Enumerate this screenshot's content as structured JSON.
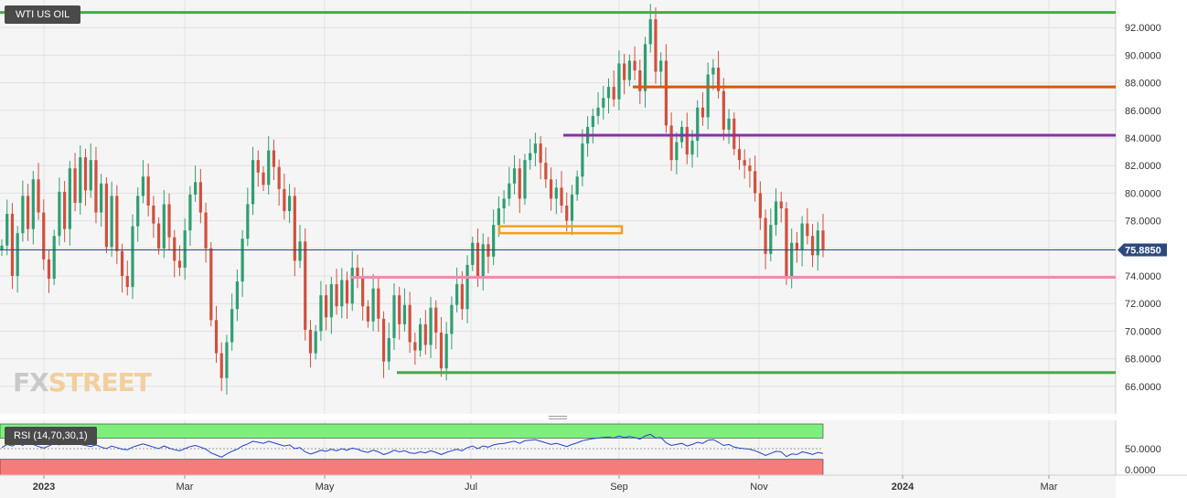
{
  "header": {
    "symbol": "WTI US OIL"
  },
  "logo": {
    "part1": "FX",
    "part2": "STREET"
  },
  "colors": {
    "up": "#2f9e72",
    "down": "#d0503e",
    "green_level": "#4aa84a",
    "orange_level": "#d4590a",
    "purple_level": "#8a2fa8",
    "pink_level": "#e98fb0",
    "zone": "#f2a020",
    "price_line": "#2b4a7a",
    "rsi_line": "#2440c8",
    "rsi_upper_band": "#7cf07c",
    "rsi_lower_band": "#f77b7b"
  },
  "chart_data": [
    {
      "type": "candlestick",
      "title": "WTI US OIL",
      "x_ticks": [
        "2023",
        "Mar",
        "May",
        "Jul",
        "Sep",
        "Nov",
        "2024",
        "Mar"
      ],
      "y_ticks": [
        "66.0000",
        "68.0000",
        "70.0000",
        "72.0000",
        "74.0000",
        "76.0000",
        "78.0000",
        "80.0000",
        "82.0000",
        "84.0000",
        "86.0000",
        "88.0000",
        "90.0000",
        "92.0000"
      ],
      "ylim": [
        64.0,
        94.0
      ],
      "last_price": "75.8850",
      "grid": true,
      "levels": [
        {
          "name": "resistance-top",
          "price": 93.1,
          "color": "green"
        },
        {
          "name": "resistance-88",
          "price": 87.7,
          "color": "orange"
        },
        {
          "name": "resistance-84",
          "price": 84.2,
          "color": "purple"
        },
        {
          "name": "support-74",
          "price": 73.9,
          "color": "pink"
        },
        {
          "name": "support-67",
          "price": 67.0,
          "color": "green"
        }
      ],
      "zone": {
        "low": 77.1,
        "high": 77.6
      },
      "series": [
        {
          "values": [
            76.2,
            78.5,
            74.0,
            77.1,
            79.8,
            77.4,
            81.0,
            78.6,
            75.2,
            73.8,
            76.9,
            80.1,
            77.4,
            81.8,
            79.3,
            82.6,
            80.2,
            82.4,
            78.6,
            80.7,
            76.1,
            79.8,
            75.8,
            74.0,
            73.2,
            77.6,
            79.8,
            81.2,
            79.1,
            77.8,
            76.0,
            79.2,
            76.8,
            75.1,
            74.6,
            77.3,
            79.9,
            80.8,
            78.6,
            76.0,
            70.8,
            68.4,
            66.6,
            69.2,
            71.6,
            73.6,
            76.7,
            79.2,
            82.4,
            81.5,
            80.6,
            83.1,
            81.9,
            80.3,
            78.7,
            79.8,
            75.1,
            76.5,
            70.1,
            68.4,
            70.0,
            72.6,
            71.0,
            73.4,
            71.8,
            73.7,
            72.0,
            74.6,
            73.9,
            71.8,
            70.7,
            73.1,
            70.9,
            67.8,
            69.5,
            72.6,
            70.5,
            71.9,
            69.2,
            68.6,
            70.5,
            69.0,
            71.7,
            69.9,
            67.3,
            69.8,
            71.9,
            73.4,
            71.6,
            74.8,
            76.4,
            73.9,
            76.3,
            75.4,
            77.7,
            78.9,
            79.6,
            80.7,
            81.8,
            79.6,
            82.4,
            82.9,
            83.6,
            82.2,
            81.0,
            79.6,
            80.4,
            79.1,
            78.0,
            79.9,
            81.2,
            83.6,
            84.8,
            85.6,
            86.2,
            86.9,
            87.7,
            86.8,
            89.4,
            88.2,
            89.6,
            88.9,
            87.4,
            90.8,
            92.6,
            88.8,
            89.6,
            84.9,
            82.4,
            83.7,
            84.8,
            82.8,
            83.8,
            86.2,
            85.5,
            88.6,
            89.1,
            87.4,
            84.6,
            85.4,
            83.2,
            82.4,
            82.0,
            81.6,
            80.0,
            78.2,
            75.6,
            77.7,
            79.4,
            78.9,
            73.8,
            76.4,
            75.9,
            77.8,
            76.9,
            75.5,
            77.3,
            75.9
          ]
        }
      ]
    },
    {
      "type": "line",
      "title": "RSI (14,70,30,1)",
      "y_ticks": [
        "0.0000",
        "50.0000"
      ],
      "ylim": [
        0,
        100
      ],
      "bands": {
        "lower": 30,
        "upper": 70
      },
      "series": [
        {
          "values": [
            52,
            58,
            55,
            60,
            56,
            62,
            58,
            54,
            51,
            55,
            60,
            57,
            63,
            59,
            61,
            58,
            56,
            54,
            57,
            53,
            50,
            55,
            52,
            49,
            48,
            53,
            56,
            59,
            56,
            53,
            50,
            55,
            51,
            48,
            46,
            50,
            54,
            56,
            53,
            49,
            42,
            38,
            34,
            40,
            45,
            49,
            55,
            59,
            64,
            62,
            60,
            64,
            61,
            58,
            55,
            57,
            50,
            52,
            44,
            40,
            43,
            47,
            45,
            49,
            46,
            50,
            47,
            51,
            49,
            45,
            43,
            47,
            44,
            39,
            42,
            47,
            44,
            46,
            42,
            41,
            44,
            42,
            46,
            43,
            39,
            43,
            46,
            49,
            46,
            52,
            55,
            50,
            55,
            53,
            57,
            59,
            60,
            62,
            64,
            60,
            65,
            66,
            67,
            64,
            61,
            58,
            60,
            57,
            54,
            58,
            61,
            65,
            67,
            69,
            70,
            71,
            72,
            70,
            74,
            71,
            73,
            71,
            68,
            74,
            77,
            70,
            71,
            61,
            56,
            58,
            60,
            55,
            58,
            62,
            60,
            66,
            67,
            62,
            56,
            58,
            53,
            51,
            50,
            49,
            46,
            42,
            37,
            41,
            45,
            44,
            35,
            40,
            39,
            44,
            42,
            39,
            43,
            41
          ]
        }
      ]
    }
  ]
}
